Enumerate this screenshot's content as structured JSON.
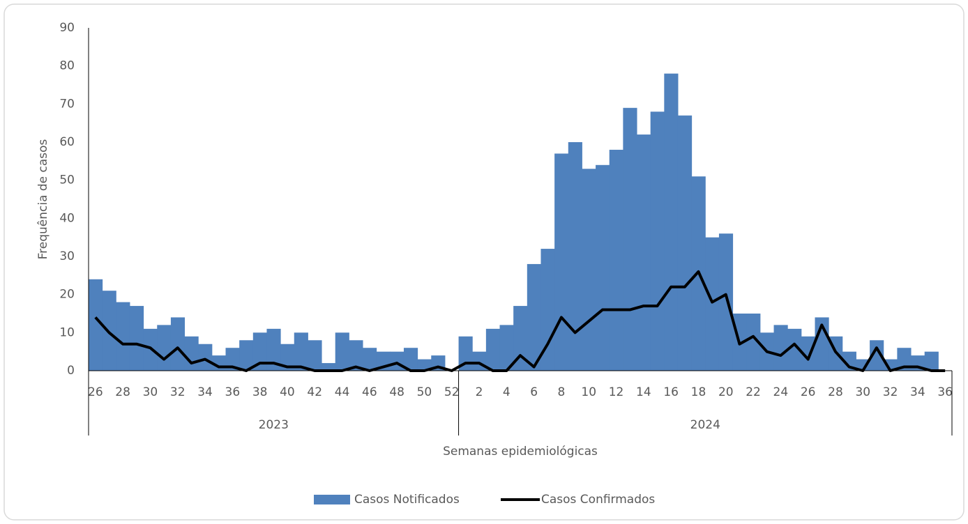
{
  "chart_data": {
    "type": "bar-line",
    "y_label": "Frequência de casos",
    "x_label": "Semanas epidemiológicas",
    "groups": [
      {
        "label": "2023",
        "categories": [
          "26",
          null,
          "28",
          null,
          "30",
          null,
          "32",
          null,
          "34",
          null,
          "36",
          null,
          "38",
          null,
          "40",
          null,
          "42",
          null,
          "44",
          null,
          "46",
          null,
          "48",
          null,
          "50",
          null,
          "52"
        ]
      },
      {
        "label": "2024",
        "categories": [
          null,
          "2",
          null,
          "4",
          null,
          "6",
          null,
          "8",
          null,
          "10",
          null,
          "12",
          null,
          "14",
          null,
          "16",
          null,
          "18",
          null,
          "20",
          null,
          "22",
          null,
          "24",
          null,
          "26",
          null,
          "28",
          null,
          "30",
          null,
          "32",
          null,
          "34",
          null,
          "36"
        ]
      }
    ],
    "series": [
      {
        "name": "Casos Notificados",
        "type": "bar",
        "color": "#4f81bd",
        "values": [
          24,
          21,
          18,
          17,
          11,
          12,
          14,
          9,
          7,
          4,
          6,
          8,
          10,
          11,
          7,
          10,
          8,
          2,
          10,
          8,
          6,
          5,
          5,
          6,
          3,
          4,
          0,
          9,
          5,
          11,
          12,
          17,
          28,
          32,
          57,
          60,
          53,
          54,
          58,
          69,
          62,
          68,
          78,
          67,
          51,
          35,
          36,
          15,
          15,
          10,
          12,
          11,
          9,
          14,
          9,
          5,
          3,
          8,
          3,
          6,
          4,
          5,
          0
        ]
      },
      {
        "name": "Casos Confirmados",
        "type": "line",
        "color": "#000000",
        "values": [
          14,
          10,
          7,
          7,
          6,
          3,
          6,
          2,
          3,
          1,
          1,
          0,
          2,
          2,
          1,
          1,
          0,
          0,
          0,
          1,
          0,
          1,
          2,
          0,
          0,
          1,
          0,
          2,
          2,
          0,
          0,
          4,
          1,
          7,
          14,
          10,
          13,
          16,
          16,
          16,
          17,
          17,
          22,
          22,
          26,
          18,
          20,
          7,
          9,
          5,
          4,
          7,
          3,
          12,
          5,
          1,
          0,
          6,
          0,
          1,
          1,
          0,
          0
        ]
      }
    ],
    "ylim": [
      0,
      90
    ],
    "yticks": [
      0,
      10,
      20,
      30,
      40,
      50,
      60,
      70,
      80,
      90
    ],
    "legend": "bottom"
  }
}
